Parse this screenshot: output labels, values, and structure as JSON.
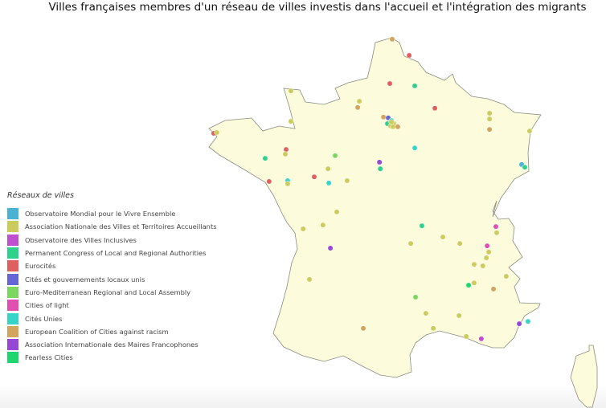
{
  "title": "Villes françaises membres d'un réseau de villes investis dans l'accueil et l'intégration des migrants",
  "chart_data": {
    "type": "map",
    "region": "France",
    "legend_title": "Réseaux de villes",
    "legend_position": "left",
    "map_fill": "#fcfcdc",
    "networks": [
      {
        "name": "Observatoire Mondial pour le Vivre Ensemble",
        "color": "#4ab3d4"
      },
      {
        "name": "Association Nationale des Villes et Territoires Accueillants",
        "color": "#cccc5c"
      },
      {
        "name": "Observatoire des Villes Inclusives",
        "color": "#bf4fcf"
      },
      {
        "name": "Permanent Congress of Local and Regional Authorities",
        "color": "#2ed18c"
      },
      {
        "name": "Eurocités",
        "color": "#e0605f"
      },
      {
        "name": "Cités et gouvernements locaux unis",
        "color": "#6565d6"
      },
      {
        "name": "Euro-Mediterranean Regional and Local Assembly",
        "color": "#7dd65d"
      },
      {
        "name": "Cities of light",
        "color": "#e04faf"
      },
      {
        "name": "Cités Unies",
        "color": "#37d4c8"
      },
      {
        "name": "European Coalition of Cities against racism",
        "color": "#d3a45d"
      },
      {
        "name": "Association Internationale des Maires Francophones",
        "color": "#9547d6"
      },
      {
        "name": "Fearless Cities",
        "color": "#1ed66d"
      }
    ],
    "points": [
      {
        "lon": 2.41,
        "lat": 51.03,
        "network": 9
      },
      {
        "lon": 3.05,
        "lat": 50.61,
        "network": 4
      },
      {
        "lon": 2.32,
        "lat": 49.88,
        "network": 4
      },
      {
        "lon": 3.26,
        "lat": 49.82,
        "network": 3
      },
      {
        "lon": -1.41,
        "lat": 49.69,
        "network": 1
      },
      {
        "lon": 1.17,
        "lat": 49.42,
        "network": 1
      },
      {
        "lon": 1.11,
        "lat": 49.26,
        "network": 9
      },
      {
        "lon": 4.02,
        "lat": 49.24,
        "network": 4
      },
      {
        "lon": 6.08,
        "lat": 49.11,
        "network": 1
      },
      {
        "lon": 6.08,
        "lat": 48.96,
        "network": 1
      },
      {
        "lon": 6.08,
        "lat": 48.69,
        "network": 9
      },
      {
        "lon": 7.59,
        "lat": 48.65,
        "network": 1
      },
      {
        "lon": -1.41,
        "lat": 48.9,
        "network": 1
      },
      {
        "lon": -4.32,
        "lat": 48.59,
        "network": 4
      },
      {
        "lon": -4.2,
        "lat": 48.61,
        "network": 1
      },
      {
        "lon": 2.08,
        "lat": 49.01,
        "network": 9
      },
      {
        "lon": 2.26,
        "lat": 48.99,
        "network": 5
      },
      {
        "lon": 2.38,
        "lat": 48.92,
        "network": 8
      },
      {
        "lon": 2.23,
        "lat": 48.84,
        "network": 3
      },
      {
        "lon": 2.35,
        "lat": 48.78,
        "network": 1
      },
      {
        "lon": 2.47,
        "lat": 48.84,
        "network": 1
      },
      {
        "lon": 2.44,
        "lat": 48.76,
        "network": 1
      },
      {
        "lon": 2.62,
        "lat": 48.76,
        "network": 9
      },
      {
        "lon": 2.38,
        "lat": 48.88,
        "network": 1
      },
      {
        "lon": 3.26,
        "lat": 48.21,
        "network": 8
      },
      {
        "lon": -1.59,
        "lat": 48.17,
        "network": 4
      },
      {
        "lon": -1.62,
        "lat": 48.05,
        "network": 1
      },
      {
        "lon": -2.38,
        "lat": 47.94,
        "network": 3
      },
      {
        "lon": 0.26,
        "lat": 48.01,
        "network": 6
      },
      {
        "lon": 1.93,
        "lat": 47.84,
        "network": 10
      },
      {
        "lon": 1.96,
        "lat": 47.67,
        "network": 3
      },
      {
        "lon": 7.29,
        "lat": 47.78,
        "network": 0
      },
      {
        "lon": 7.41,
        "lat": 47.71,
        "network": 3
      },
      {
        "lon": -0.01,
        "lat": 47.67,
        "network": 1
      },
      {
        "lon": -0.53,
        "lat": 47.46,
        "network": 4
      },
      {
        "lon": -2.23,
        "lat": 47.34,
        "network": 4
      },
      {
        "lon": -1.53,
        "lat": 47.36,
        "network": 8
      },
      {
        "lon": -1.53,
        "lat": 47.28,
        "network": 1
      },
      {
        "lon": 0.02,
        "lat": 47.3,
        "network": 8
      },
      {
        "lon": 0.71,
        "lat": 47.36,
        "network": 1
      },
      {
        "lon": 0.32,
        "lat": 46.55,
        "network": 1
      },
      {
        "lon": -0.2,
        "lat": 46.21,
        "network": 1
      },
      {
        "lon": -0.95,
        "lat": 46.11,
        "network": 1
      },
      {
        "lon": 3.53,
        "lat": 46.19,
        "network": 3
      },
      {
        "lon": 6.32,
        "lat": 46.17,
        "network": 7
      },
      {
        "lon": 6.35,
        "lat": 46.01,
        "network": 1
      },
      {
        "lon": 4.32,
        "lat": 45.9,
        "network": 1
      },
      {
        "lon": 3.11,
        "lat": 45.73,
        "network": 1
      },
      {
        "lon": 4.96,
        "lat": 45.73,
        "network": 1
      },
      {
        "lon": 0.08,
        "lat": 45.61,
        "network": 10
      },
      {
        "lon": 5.99,
        "lat": 45.67,
        "network": 7
      },
      {
        "lon": 6.05,
        "lat": 45.51,
        "network": 1
      },
      {
        "lon": 5.96,
        "lat": 45.36,
        "network": 1
      },
      {
        "lon": 5.5,
        "lat": 45.19,
        "network": 1
      },
      {
        "lon": 5.83,
        "lat": 45.15,
        "network": 1
      },
      {
        "lon": 6.71,
        "lat": 44.88,
        "network": 1
      },
      {
        "lon": -0.71,
        "lat": 44.8,
        "network": 1
      },
      {
        "lon": 5.5,
        "lat": 44.71,
        "network": 1
      },
      {
        "lon": 5.29,
        "lat": 44.65,
        "network": 11
      },
      {
        "lon": 6.23,
        "lat": 44.55,
        "network": 9
      },
      {
        "lon": 3.29,
        "lat": 44.34,
        "network": 6
      },
      {
        "lon": 3.68,
        "lat": 43.92,
        "network": 1
      },
      {
        "lon": 4.93,
        "lat": 43.86,
        "network": 1
      },
      {
        "lon": 1.32,
        "lat": 43.53,
        "network": 9
      },
      {
        "lon": 3.96,
        "lat": 43.53,
        "network": 1
      },
      {
        "lon": 7.2,
        "lat": 43.65,
        "network": 10
      },
      {
        "lon": 7.53,
        "lat": 43.71,
        "network": 8
      },
      {
        "lon": 5.2,
        "lat": 43.32,
        "network": 1
      },
      {
        "lon": 5.77,
        "lat": 43.26,
        "network": 2
      }
    ]
  }
}
